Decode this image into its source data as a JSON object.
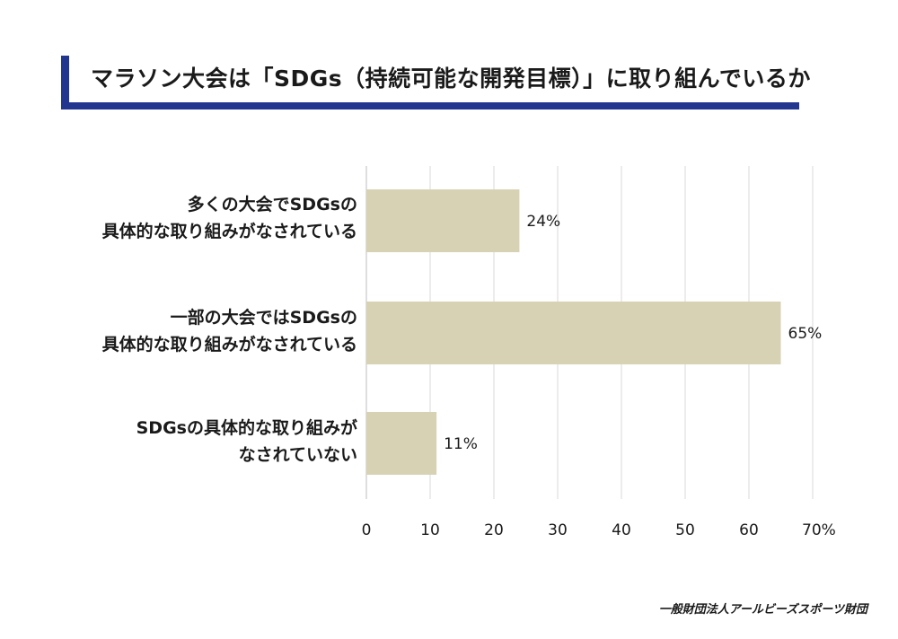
{
  "title": "マラソン大会は「SDGs（持続可能な開発目標）」に取り組んでいるか",
  "footer": "一般財団法人アールビーズスポーツ財団",
  "colors": {
    "bar": "#d8d2b4",
    "title_rule": "#22358f",
    "grid": "#d8d8d8"
  },
  "chart_data": {
    "type": "bar",
    "orientation": "horizontal",
    "categories": [
      [
        "多くの大会でSDGsの",
        "具体的な取り組みがなされている"
      ],
      [
        "一部の大会ではSDGsの",
        "具体的な取り組みがなされている"
      ],
      [
        "SDGsの具体的な取り組みが",
        "なされていない"
      ]
    ],
    "values": [
      24,
      65,
      11
    ],
    "value_labels": [
      "24%",
      "65%",
      "11%"
    ],
    "x_ticks": [
      "0",
      "10",
      "20",
      "30",
      "40",
      "50",
      "60",
      "70%"
    ],
    "xlim": [
      0,
      70
    ],
    "grid": true
  }
}
